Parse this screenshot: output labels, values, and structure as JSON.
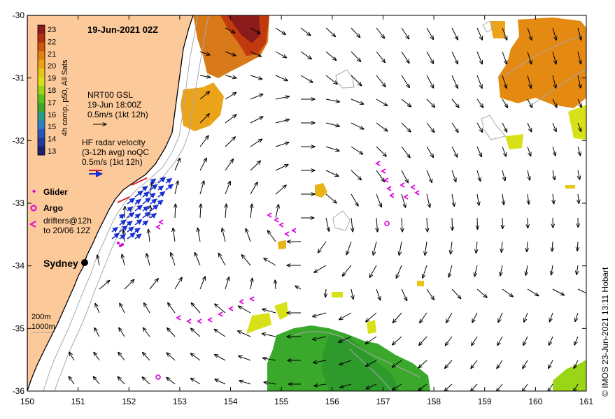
{
  "title": "19-Jun-2021 02Z",
  "colorbar": {
    "label": "4h comp, p50, All Sats",
    "ticks": [
      "23",
      "22",
      "21",
      "20",
      "19",
      "18",
      "17",
      "16",
      "15",
      "14",
      "13"
    ],
    "colors": [
      "#8b1a1a",
      "#b3300f",
      "#d2550c",
      "#e3800f",
      "#eda11a",
      "#e8c619",
      "#d8e018",
      "#9ad617",
      "#5cc21b",
      "#3aa829",
      "#2d9b8a",
      "#2f7fc6",
      "#2a55c0",
      "#233a9a",
      "#1a1f6e"
    ]
  },
  "legend": {
    "nrt_line1": "NRT00 GSL",
    "nrt_line2": "19-Jun 18:00Z",
    "nrt_line3": "0.5m/s (1kt 12h)",
    "hf_line1": "HF radar velocity",
    "hf_line2": "(3-12h avg) noQC",
    "hf_line3": "0.5m/s (1kt 12h)",
    "glider": "Glider",
    "argo": "Argo",
    "drifters_line1": "drifters@12h",
    "drifters_line2": "to 20/06 12Z",
    "depth1": "200m",
    "depth2": "1000m"
  },
  "city": "Sydney",
  "credit": "© IMOS 23-Jun-2021 13:11 Hobart",
  "axes": {
    "x_ticks": [
      "150",
      "151",
      "152",
      "153",
      "154",
      "155",
      "156",
      "157",
      "158",
      "159",
      "160",
      "161"
    ],
    "y_ticks": [
      "-30",
      "-31",
      "-32",
      "-33",
      "-34",
      "-35",
      "-36"
    ],
    "lon_range": [
      150,
      161
    ],
    "lat_range": [
      -36,
      -30
    ]
  },
  "colors": {
    "land": "#fcc99a",
    "coast": "#000000",
    "hf_arrows": "#1a2fd0",
    "glider": "#d400d4",
    "argo": "#d400d4",
    "drifters": "#e000e0"
  }
}
